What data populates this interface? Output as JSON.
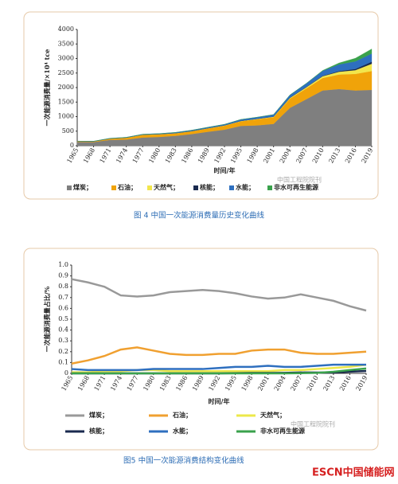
{
  "chart_data": [
    {
      "type": "area",
      "stacked": true,
      "y_label": "一次能源消费量/×10⁴ tce",
      "x_label": "时间/年",
      "caption": "图 4  中国一次能源消费量历史变化曲线",
      "x": [
        1965,
        1968,
        1971,
        1974,
        1977,
        1980,
        1983,
        1986,
        1989,
        1992,
        1995,
        1998,
        2001,
        2004,
        2007,
        2010,
        2013,
        2016,
        2019
      ],
      "xlim": [
        1965,
        2019
      ],
      "xticks": [
        1965,
        1968,
        1971,
        1974,
        1977,
        1980,
        1983,
        1986,
        1989,
        1992,
        1995,
        1998,
        2001,
        2004,
        2007,
        2010,
        2013,
        2016,
        2019
      ],
      "ylim": [
        0,
        4000
      ],
      "yticks": [
        0,
        500,
        1000,
        1500,
        2000,
        2500,
        3000,
        3500,
        4000
      ],
      "series": [
        {
          "name": "煤炭；",
          "color": "#7f7f7f",
          "values": [
            130,
            125,
            200,
            210,
            280,
            300,
            340,
            400,
            480,
            550,
            680,
            700,
            750,
            1300,
            1600,
            1900,
            1950,
            1900,
            1920
          ]
        },
        {
          "name": "石油；",
          "color": "#f0a30a",
          "values": [
            20,
            20,
            40,
            60,
            90,
            90,
            85,
            95,
            115,
            140,
            160,
            210,
            230,
            320,
            370,
            430,
            500,
            570,
            650
          ]
        },
        {
          "name": "天然气；",
          "color": "#f2e64c",
          "values": [
            3,
            3,
            4,
            7,
            9,
            8,
            7,
            8,
            9,
            10,
            11,
            14,
            18,
            25,
            40,
            60,
            95,
            130,
            250
          ]
        },
        {
          "name": "核能；",
          "color": "#1a2a4f",
          "values": [
            0,
            0,
            0,
            0,
            0,
            0,
            0,
            0,
            0,
            0,
            2,
            2,
            3,
            10,
            12,
            15,
            22,
            40,
            70
          ]
        },
        {
          "name": "水能；",
          "color": "#2e6fbf",
          "values": [
            5,
            7,
            10,
            12,
            15,
            18,
            25,
            30,
            32,
            35,
            50,
            55,
            70,
            90,
            120,
            170,
            230,
            260,
            280
          ]
        },
        {
          "name": "非水可再生能源",
          "color": "#3aa24c",
          "values": [
            0,
            0,
            0,
            0,
            0,
            0,
            0,
            0,
            0,
            0,
            0,
            0,
            0,
            1,
            3,
            15,
            50,
            110,
            160
          ]
        }
      ]
    },
    {
      "type": "line",
      "y_label": "一次能源消费量占比/%",
      "x_label": "时间/年",
      "caption": "图5  中国一次能源消费结构变化曲线",
      "x": [
        1965,
        1968,
        1971,
        1974,
        1977,
        1980,
        1983,
        1986,
        1989,
        1992,
        1995,
        1998,
        2001,
        2004,
        2007,
        2010,
        2013,
        2016,
        2019
      ],
      "xlim": [
        1965,
        2019
      ],
      "xticks": [
        1965,
        1968,
        1971,
        1974,
        1977,
        1980,
        1983,
        1986,
        1989,
        1992,
        1995,
        1998,
        2001,
        2004,
        2007,
        2010,
        2013,
        2016,
        2019
      ],
      "ylim": [
        0,
        1
      ],
      "yticks": [
        0,
        0.1,
        0.2,
        0.3,
        0.4,
        0.5,
        0.6,
        0.7,
        0.8,
        0.9,
        {
          "value": 1,
          "label": "1.0"
        }
      ],
      "series": [
        {
          "name": "煤炭；",
          "color": "#999999",
          "values": [
            0.87,
            0.84,
            0.8,
            0.72,
            0.71,
            0.72,
            0.75,
            0.76,
            0.77,
            0.76,
            0.74,
            0.71,
            0.69,
            0.7,
            0.73,
            0.7,
            0.67,
            0.62,
            0.58
          ]
        },
        {
          "name": "石油；",
          "color": "#f0a030",
          "values": [
            0.09,
            0.12,
            0.16,
            0.22,
            0.24,
            0.21,
            0.18,
            0.17,
            0.17,
            0.18,
            0.18,
            0.21,
            0.22,
            0.22,
            0.19,
            0.18,
            0.18,
            0.19,
            0.2
          ]
        },
        {
          "name": "天然气；",
          "color": "#ece84a",
          "values": [
            0.01,
            0.01,
            0.02,
            0.02,
            0.03,
            0.03,
            0.02,
            0.02,
            0.02,
            0.02,
            0.02,
            0.02,
            0.02,
            0.03,
            0.03,
            0.04,
            0.05,
            0.06,
            0.08
          ]
        },
        {
          "name": "核能；",
          "color": "#1a2a4f",
          "values": [
            0,
            0,
            0,
            0,
            0,
            0,
            0,
            0,
            0,
            0,
            0.002,
            0.004,
            0.004,
            0.005,
            0.008,
            0.007,
            0.008,
            0.016,
            0.022
          ]
        },
        {
          "name": "水能；",
          "color": "#2e6fbf",
          "values": [
            0.04,
            0.03,
            0.03,
            0.03,
            0.03,
            0.04,
            0.04,
            0.04,
            0.04,
            0.05,
            0.06,
            0.06,
            0.07,
            0.06,
            0.06,
            0.07,
            0.08,
            0.08,
            0.08
          ]
        },
        {
          "name": "非水可再生能源",
          "color": "#3aa24c",
          "values": [
            0,
            0,
            0,
            0,
            0,
            0,
            0,
            0,
            0,
            0,
            0,
            0,
            0,
            0,
            0.002,
            0.005,
            0.015,
            0.03,
            0.045
          ]
        }
      ]
    }
  ],
  "watermark": "中国工程院院刊",
  "logo": "ESCN中国储能网"
}
